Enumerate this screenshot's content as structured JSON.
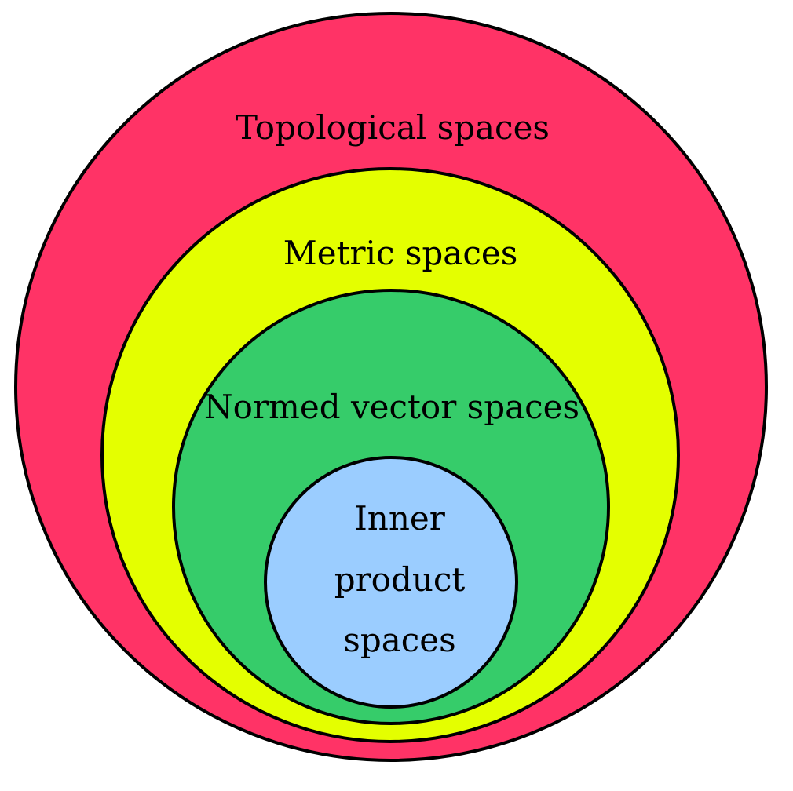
{
  "diagram": {
    "sets": [
      {
        "name": "topological-spaces",
        "label_lines": [
          "Topological spaces"
        ],
        "color": "#ff3366"
      },
      {
        "name": "metric-spaces",
        "label_lines": [
          "Metric spaces"
        ],
        "color": "#e4ff00"
      },
      {
        "name": "normed-vector-spaces",
        "label_lines": [
          "Normed vector spaces"
        ],
        "color": "#36cc6a"
      },
      {
        "name": "inner-product-spaces",
        "label_lines": [
          "Inner",
          "product",
          "spaces"
        ],
        "color": "#9bcdff"
      }
    ]
  }
}
